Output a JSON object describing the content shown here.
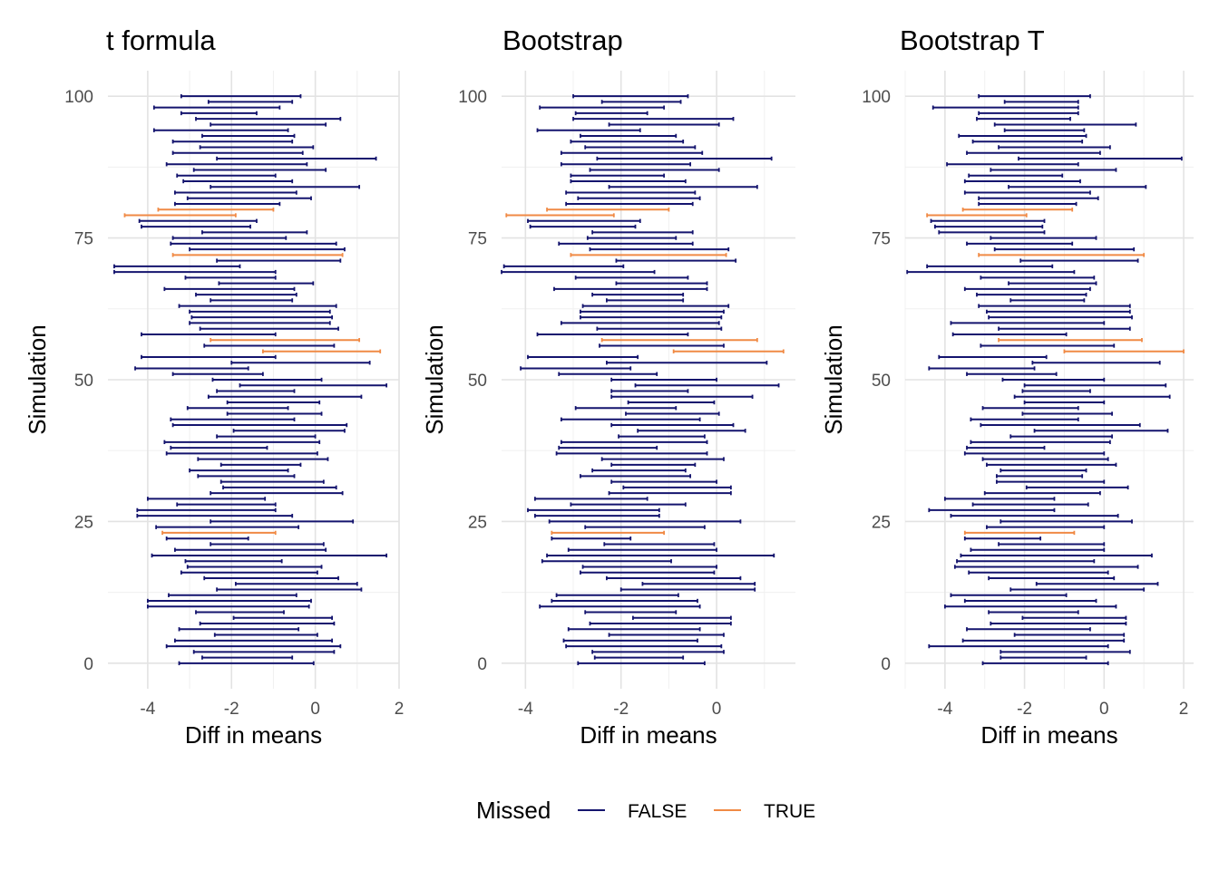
{
  "legend": {
    "title": "Missed",
    "items": [
      {
        "label": "FALSE",
        "color": "#14146e"
      },
      {
        "label": "TRUE",
        "color": "#f08a45"
      }
    ],
    "position": "bottom"
  },
  "chart_data": [
    {
      "type": "interval",
      "title": "t formula",
      "xlabel": "Diff in means",
      "ylabel": "Simulation",
      "xlim": [
        -4.95,
        2.0
      ],
      "ylim": [
        -4.5,
        104.5
      ],
      "xticks": [
        -4,
        -2,
        0,
        2
      ],
      "yticks": [
        0,
        25,
        50,
        75,
        100
      ],
      "grid": true,
      "missed_simulations": [
        23,
        55,
        57,
        72,
        79,
        80
      ],
      "intervals": [
        [
          -3.25,
          -0.04
        ],
        [
          -2.7,
          -0.55
        ],
        [
          -2.9,
          0.45
        ],
        [
          -3.55,
          0.6
        ],
        [
          -3.35,
          0.4
        ],
        [
          -2.4,
          0.05
        ],
        [
          -3.25,
          -0.4
        ],
        [
          -2.75,
          0.45
        ],
        [
          -1.95,
          0.4
        ],
        [
          -2.85,
          -0.75
        ],
        [
          -4.0,
          -0.15
        ],
        [
          -4.0,
          -0.1
        ],
        [
          -3.5,
          -0.45
        ],
        [
          -2.35,
          1.1
        ],
        [
          -1.9,
          1.0
        ],
        [
          -2.65,
          0.55
        ],
        [
          -3.2,
          0.05
        ],
        [
          -3.05,
          0.15
        ],
        [
          -3.1,
          -0.8
        ],
        [
          -3.9,
          1.7
        ],
        [
          -3.35,
          0.25
        ],
        [
          -2.5,
          0.2
        ],
        [
          -3.55,
          -1.6
        ],
        [
          -3.65,
          -0.95
        ],
        [
          -3.8,
          -0.4
        ],
        [
          -2.5,
          0.9
        ],
        [
          -4.25,
          -0.55
        ],
        [
          -4.25,
          -0.95
        ],
        [
          -3.3,
          -0.95
        ],
        [
          -4.0,
          -1.2
        ],
        [
          -2.5,
          0.65
        ],
        [
          -2.2,
          0.5
        ],
        [
          -2.25,
          0.2
        ],
        [
          -2.8,
          -0.5
        ],
        [
          -3.0,
          -0.65
        ],
        [
          -2.25,
          -0.35
        ],
        [
          -2.8,
          0.3
        ],
        [
          -3.55,
          0.05
        ],
        [
          -3.45,
          -1.15
        ],
        [
          -3.6,
          0.1
        ],
        [
          -2.35,
          0.0
        ],
        [
          -1.95,
          0.7
        ],
        [
          -3.4,
          0.75
        ],
        [
          -3.45,
          -0.5
        ],
        [
          -2.1,
          0.15
        ],
        [
          -3.05,
          -0.65
        ],
        [
          -2.1,
          0.1
        ],
        [
          -2.55,
          1.1
        ],
        [
          -2.35,
          -0.5
        ],
        [
          -1.8,
          1.7
        ],
        [
          -2.45,
          0.15
        ],
        [
          -3.4,
          -1.25
        ],
        [
          -4.3,
          -1.6
        ],
        [
          -2.0,
          1.3
        ],
        [
          -4.15,
          -0.95
        ],
        [
          -1.25,
          1.55
        ],
        [
          -2.65,
          0.45
        ],
        [
          -2.5,
          1.05
        ],
        [
          -4.15,
          -0.95
        ],
        [
          -2.75,
          0.55
        ],
        [
          -3.0,
          0.35
        ],
        [
          -2.95,
          0.4
        ],
        [
          -3.0,
          0.35
        ],
        [
          -3.25,
          0.5
        ],
        [
          -2.5,
          -0.55
        ],
        [
          -2.85,
          -0.45
        ],
        [
          -3.6,
          -0.5
        ],
        [
          -2.3,
          -0.05
        ],
        [
          -3.1,
          -0.95
        ],
        [
          -4.8,
          -0.95
        ],
        [
          -4.8,
          -1.8
        ],
        [
          -2.35,
          0.6
        ],
        [
          -3.4,
          0.65
        ],
        [
          -3.0,
          0.7
        ],
        [
          -3.45,
          0.5
        ],
        [
          -3.4,
          -0.7
        ],
        [
          -2.7,
          -0.2
        ],
        [
          -4.15,
          -1.55
        ],
        [
          -4.2,
          -1.4
        ],
        [
          -4.55,
          -1.9
        ],
        [
          -3.75,
          -1.0
        ],
        [
          -3.35,
          -0.85
        ],
        [
          -3.05,
          -0.1
        ],
        [
          -3.35,
          -0.45
        ],
        [
          -2.5,
          1.05
        ],
        [
          -3.15,
          -0.55
        ],
        [
          -3.3,
          -0.95
        ],
        [
          -2.9,
          0.25
        ],
        [
          -3.55,
          -0.2
        ],
        [
          -2.35,
          1.45
        ],
        [
          -3.4,
          -0.3
        ],
        [
          -2.75,
          -0.05
        ],
        [
          -3.4,
          -0.55
        ],
        [
          -2.7,
          -0.5
        ],
        [
          -3.85,
          -0.65
        ],
        [
          -2.5,
          0.25
        ],
        [
          -2.85,
          0.6
        ],
        [
          -3.2,
          -1.4
        ],
        [
          -3.85,
          -0.85
        ],
        [
          -2.55,
          -0.55
        ],
        [
          -3.2,
          -0.35
        ]
      ]
    },
    {
      "type": "interval",
      "title": "Bootstrap",
      "xlabel": "Diff in means",
      "ylabel": "Simulation",
      "xlim": [
        -4.5,
        1.65
      ],
      "ylim": [
        -4.5,
        104.5
      ],
      "xticks": [
        -4,
        -2,
        0
      ],
      "yticks": [
        0,
        25,
        50,
        75,
        100
      ],
      "grid": true,
      "missed_simulations": [
        23,
        55,
        57,
        72,
        79,
        80
      ],
      "intervals": [
        [
          -2.9,
          -0.25
        ],
        [
          -2.55,
          -0.7
        ],
        [
          -2.6,
          0.15
        ],
        [
          -3.15,
          0.1
        ],
        [
          -3.2,
          -0.4
        ],
        [
          -2.25,
          0.15
        ],
        [
          -3.1,
          -0.35
        ],
        [
          -2.65,
          0.3
        ],
        [
          -1.75,
          0.3
        ],
        [
          -2.75,
          -0.85
        ],
        [
          -3.7,
          -0.35
        ],
        [
          -3.45,
          -0.4
        ],
        [
          -3.35,
          -0.8
        ],
        [
          -2.0,
          0.8
        ],
        [
          -1.55,
          0.8
        ],
        [
          -2.3,
          0.5
        ],
        [
          -2.85,
          -0.05
        ],
        [
          -2.8,
          0.0
        ],
        [
          -3.65,
          -0.95
        ],
        [
          -3.55,
          1.2
        ],
        [
          -3.1,
          -0.0
        ],
        [
          -2.35,
          -0.05
        ],
        [
          -3.45,
          -1.8
        ],
        [
          -3.45,
          -1.1
        ],
        [
          -2.75,
          -0.25
        ],
        [
          -3.5,
          0.5
        ],
        [
          -3.8,
          -1.2
        ],
        [
          -3.95,
          -1.2
        ],
        [
          -3.05,
          -0.65
        ],
        [
          -3.8,
          -1.45
        ],
        [
          -2.25,
          0.3
        ],
        [
          -1.95,
          0.3
        ],
        [
          -2.2,
          0.0
        ],
        [
          -2.85,
          -0.55
        ],
        [
          -2.6,
          -0.65
        ],
        [
          -2.2,
          -0.45
        ],
        [
          -2.4,
          0.15
        ],
        [
          -3.35,
          -0.2
        ],
        [
          -3.3,
          -1.25
        ],
        [
          -3.25,
          -0.2
        ],
        [
          -2.05,
          -0.25
        ],
        [
          -1.65,
          0.6
        ],
        [
          -2.2,
          0.35
        ],
        [
          -3.25,
          -0.35
        ],
        [
          -1.9,
          0.05
        ],
        [
          -2.95,
          -0.85
        ],
        [
          -1.85,
          -0.05
        ],
        [
          -2.2,
          0.75
        ],
        [
          -2.2,
          -0.6
        ],
        [
          -1.7,
          1.3
        ],
        [
          -2.2,
          0.0
        ],
        [
          -3.3,
          -1.25
        ],
        [
          -4.1,
          -1.8
        ],
        [
          -2.3,
          1.05
        ],
        [
          -3.95,
          -1.65
        ],
        [
          -0.9,
          1.4
        ],
        [
          -2.45,
          0.15
        ],
        [
          -2.4,
          0.85
        ],
        [
          -3.75,
          -0.6
        ],
        [
          -2.5,
          0.1
        ],
        [
          -3.25,
          0.05
        ],
        [
          -2.85,
          0.1
        ],
        [
          -2.85,
          0.15
        ],
        [
          -2.8,
          0.25
        ],
        [
          -2.3,
          -0.7
        ],
        [
          -2.6,
          -0.7
        ],
        [
          -3.4,
          -0.2
        ],
        [
          -2.1,
          -0.2
        ],
        [
          -2.95,
          -0.6
        ],
        [
          -4.5,
          -1.3
        ],
        [
          -4.45,
          -1.95
        ],
        [
          -2.1,
          0.4
        ],
        [
          -3.05,
          0.2
        ],
        [
          -2.65,
          0.25
        ],
        [
          -3.3,
          -0.5
        ],
        [
          -2.7,
          -0.85
        ],
        [
          -2.6,
          -0.5
        ],
        [
          -3.9,
          -1.7
        ],
        [
          -3.95,
          -1.6
        ],
        [
          -4.4,
          -2.15
        ],
        [
          -3.55,
          -1.0
        ],
        [
          -3.15,
          -0.5
        ],
        [
          -2.9,
          -0.35
        ],
        [
          -3.15,
          -0.45
        ],
        [
          -2.25,
          0.85
        ],
        [
          -3.05,
          -0.65
        ],
        [
          -3.05,
          -1.1
        ],
        [
          -2.65,
          0.05
        ],
        [
          -3.25,
          -0.55
        ],
        [
          -2.5,
          1.15
        ],
        [
          -3.25,
          -0.3
        ],
        [
          -2.75,
          -0.45
        ],
        [
          -3.05,
          -0.7
        ],
        [
          -2.85,
          -0.85
        ],
        [
          -3.75,
          -1.6
        ],
        [
          -2.25,
          0.05
        ],
        [
          -3.0,
          0.35
        ],
        [
          -2.95,
          -1.45
        ],
        [
          -3.7,
          -1.1
        ],
        [
          -2.4,
          -0.75
        ],
        [
          -3.0,
          -0.6
        ]
      ]
    },
    {
      "type": "interval",
      "title": "Bootstrap T",
      "xlabel": "Diff in means",
      "ylabel": "Simulation",
      "xlim": [
        -5.0,
        2.25
      ],
      "ylim": [
        -4.5,
        104.5
      ],
      "xticks": [
        -4,
        -2,
        0,
        2
      ],
      "yticks": [
        0,
        25,
        50,
        75,
        100
      ],
      "grid": true,
      "missed_simulations": [
        23,
        55,
        57,
        72,
        79,
        80
      ],
      "intervals": [
        [
          -3.05,
          0.1
        ],
        [
          -2.6,
          -0.45
        ],
        [
          -2.6,
          0.65
        ],
        [
          -4.4,
          0.1
        ],
        [
          -3.55,
          0.5
        ],
        [
          -2.25,
          0.5
        ],
        [
          -3.45,
          -0.35
        ],
        [
          -2.85,
          0.55
        ],
        [
          -2.05,
          0.55
        ],
        [
          -2.9,
          -0.65
        ],
        [
          -4.0,
          0.3
        ],
        [
          -3.5,
          -0.2
        ],
        [
          -3.85,
          -0.95
        ],
        [
          -2.35,
          1.0
        ],
        [
          -1.7,
          1.35
        ],
        [
          -2.9,
          0.25
        ],
        [
          -3.4,
          0.1
        ],
        [
          -3.75,
          0.85
        ],
        [
          -3.7,
          -0.25
        ],
        [
          -3.6,
          1.2
        ],
        [
          -3.35,
          0.0
        ],
        [
          -2.65,
          0.0
        ],
        [
          -3.5,
          -1.6
        ],
        [
          -3.5,
          -0.75
        ],
        [
          -2.95,
          0.0
        ],
        [
          -2.6,
          0.7
        ],
        [
          -3.85,
          0.35
        ],
        [
          -4.4,
          -1.25
        ],
        [
          -3.3,
          -0.4
        ],
        [
          -4.0,
          -1.25
        ],
        [
          -3.0,
          -0.1
        ],
        [
          -1.95,
          0.6
        ],
        [
          -2.7,
          0.0
        ],
        [
          -2.7,
          -0.55
        ],
        [
          -2.6,
          -0.45
        ],
        [
          -2.95,
          0.3
        ],
        [
          -3.05,
          0.1
        ],
        [
          -3.5,
          0.0
        ],
        [
          -3.45,
          -1.5
        ],
        [
          -3.35,
          0.15
        ],
        [
          -2.35,
          0.2
        ],
        [
          -1.75,
          1.6
        ],
        [
          -3.1,
          0.9
        ],
        [
          -3.35,
          -0.65
        ],
        [
          -2.05,
          0.2
        ],
        [
          -3.05,
          -0.65
        ],
        [
          -2.0,
          0.0
        ],
        [
          -2.25,
          1.65
        ],
        [
          -2.05,
          -0.35
        ],
        [
          -2.0,
          1.55
        ],
        [
          -2.55,
          0.0
        ],
        [
          -3.45,
          -1.2
        ],
        [
          -4.4,
          -1.75
        ],
        [
          -1.8,
          1.4
        ],
        [
          -4.15,
          -1.45
        ],
        [
          -1.0,
          2.0
        ],
        [
          -3.1,
          0.25
        ],
        [
          -2.65,
          0.95
        ],
        [
          -3.8,
          -0.95
        ],
        [
          -2.65,
          0.65
        ],
        [
          -3.85,
          0.0
        ],
        [
          -2.9,
          0.7
        ],
        [
          -2.95,
          0.65
        ],
        [
          -3.15,
          0.65
        ],
        [
          -2.35,
          -0.5
        ],
        [
          -3.2,
          -0.45
        ],
        [
          -3.5,
          -0.35
        ],
        [
          -2.4,
          -0.2
        ],
        [
          -3.1,
          -0.25
        ],
        [
          -4.95,
          -0.75
        ],
        [
          -4.45,
          -1.3
        ],
        [
          -2.1,
          0.85
        ],
        [
          -3.15,
          1.0
        ],
        [
          -2.75,
          0.75
        ],
        [
          -3.45,
          -0.8
        ],
        [
          -2.85,
          -0.2
        ],
        [
          -4.15,
          -1.5
        ],
        [
          -4.25,
          -1.55
        ],
        [
          -4.35,
          -1.5
        ],
        [
          -4.45,
          -1.95
        ],
        [
          -3.55,
          -0.8
        ],
        [
          -3.15,
          -0.7
        ],
        [
          -3.15,
          -0.15
        ],
        [
          -3.5,
          -0.35
        ],
        [
          -2.4,
          1.05
        ],
        [
          -3.5,
          -0.6
        ],
        [
          -3.4,
          -1.05
        ],
        [
          -2.85,
          0.3
        ],
        [
          -3.95,
          -0.65
        ],
        [
          -2.15,
          1.95
        ],
        [
          -3.45,
          -0.1
        ],
        [
          -2.65,
          0.15
        ],
        [
          -3.3,
          -0.55
        ],
        [
          -3.65,
          -0.45
        ],
        [
          -2.5,
          -0.5
        ],
        [
          -2.75,
          0.8
        ],
        [
          -3.2,
          -0.85
        ],
        [
          -3.15,
          -0.65
        ],
        [
          -4.3,
          -0.65
        ],
        [
          -2.5,
          -0.65
        ],
        [
          -3.15,
          -0.35
        ]
      ]
    }
  ]
}
